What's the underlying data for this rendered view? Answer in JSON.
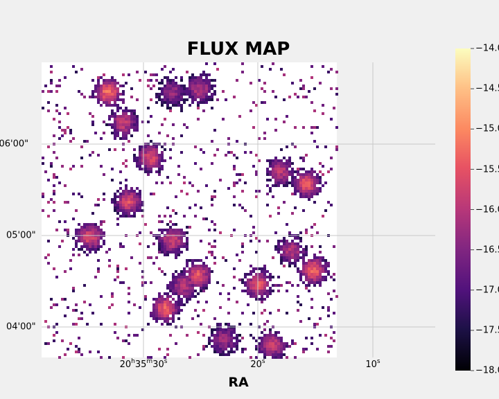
{
  "chart_data": {
    "type": "heatmap",
    "title": "FLUX MAP",
    "xlabel": "RA",
    "ylabel": "",
    "x_ticks": [
      {
        "h": "20",
        "m": "35",
        "s": "30",
        "label": "20h35m30s"
      },
      {
        "h": "",
        "m": "",
        "s": "20",
        "label": "20s"
      },
      {
        "h": "",
        "m": "",
        "s": "10",
        "label": "10s"
      }
    ],
    "y_ticks": [
      "°06'00\"",
      "05'00\"",
      "04'00\""
    ],
    "grid": true,
    "colormap": "magma",
    "colorbar": {
      "range": [
        -18.0,
        -14.0
      ],
      "ticks": [
        "−14.0",
        "−14.5",
        "−15.0",
        "−15.5",
        "−16.0",
        "−16.5",
        "−17.0",
        "−17.5",
        "−18.0"
      ]
    },
    "blobs": [
      {
        "ra_s": 33.2,
        "dec": "06:35",
        "peak": -15.2
      },
      {
        "ra_s": 31.9,
        "dec": "06:15",
        "peak": -15.8
      },
      {
        "ra_s": 29.5,
        "dec": "05:52",
        "peak": -15.6
      },
      {
        "ra_s": 27.6,
        "dec": "06:35",
        "peak": -16.3
      },
      {
        "ra_s": 25.2,
        "dec": "06:37",
        "peak": -16.0
      },
      {
        "ra_s": 27.6,
        "dec": "04:58",
        "peak": -15.7
      },
      {
        "ra_s": 25.4,
        "dec": "04:35",
        "peak": -15.5
      },
      {
        "ra_s": 26.6,
        "dec": "04:28",
        "peak": -15.9
      },
      {
        "ra_s": 28.2,
        "dec": "04:13",
        "peak": -15.3
      },
      {
        "ra_s": 20.1,
        "dec": "04:29",
        "peak": -15.5
      },
      {
        "ra_s": 18.2,
        "dec": "05:43",
        "peak": -15.9
      },
      {
        "ra_s": 15.9,
        "dec": "05:35",
        "peak": -15.4
      },
      {
        "ra_s": 15.3,
        "dec": "04:38",
        "peak": -15.3
      },
      {
        "ra_s": 17.2,
        "dec": "04:51",
        "peak": -16.0
      },
      {
        "ra_s": 23.1,
        "dec": "03:53",
        "peak": -16.2
      },
      {
        "ra_s": 18.9,
        "dec": "03:49",
        "peak": -15.8
      },
      {
        "ra_s": 34.8,
        "dec": "05:00",
        "peak": -15.6
      },
      {
        "ra_s": 31.4,
        "dec": "05:23",
        "peak": -15.6
      }
    ]
  }
}
